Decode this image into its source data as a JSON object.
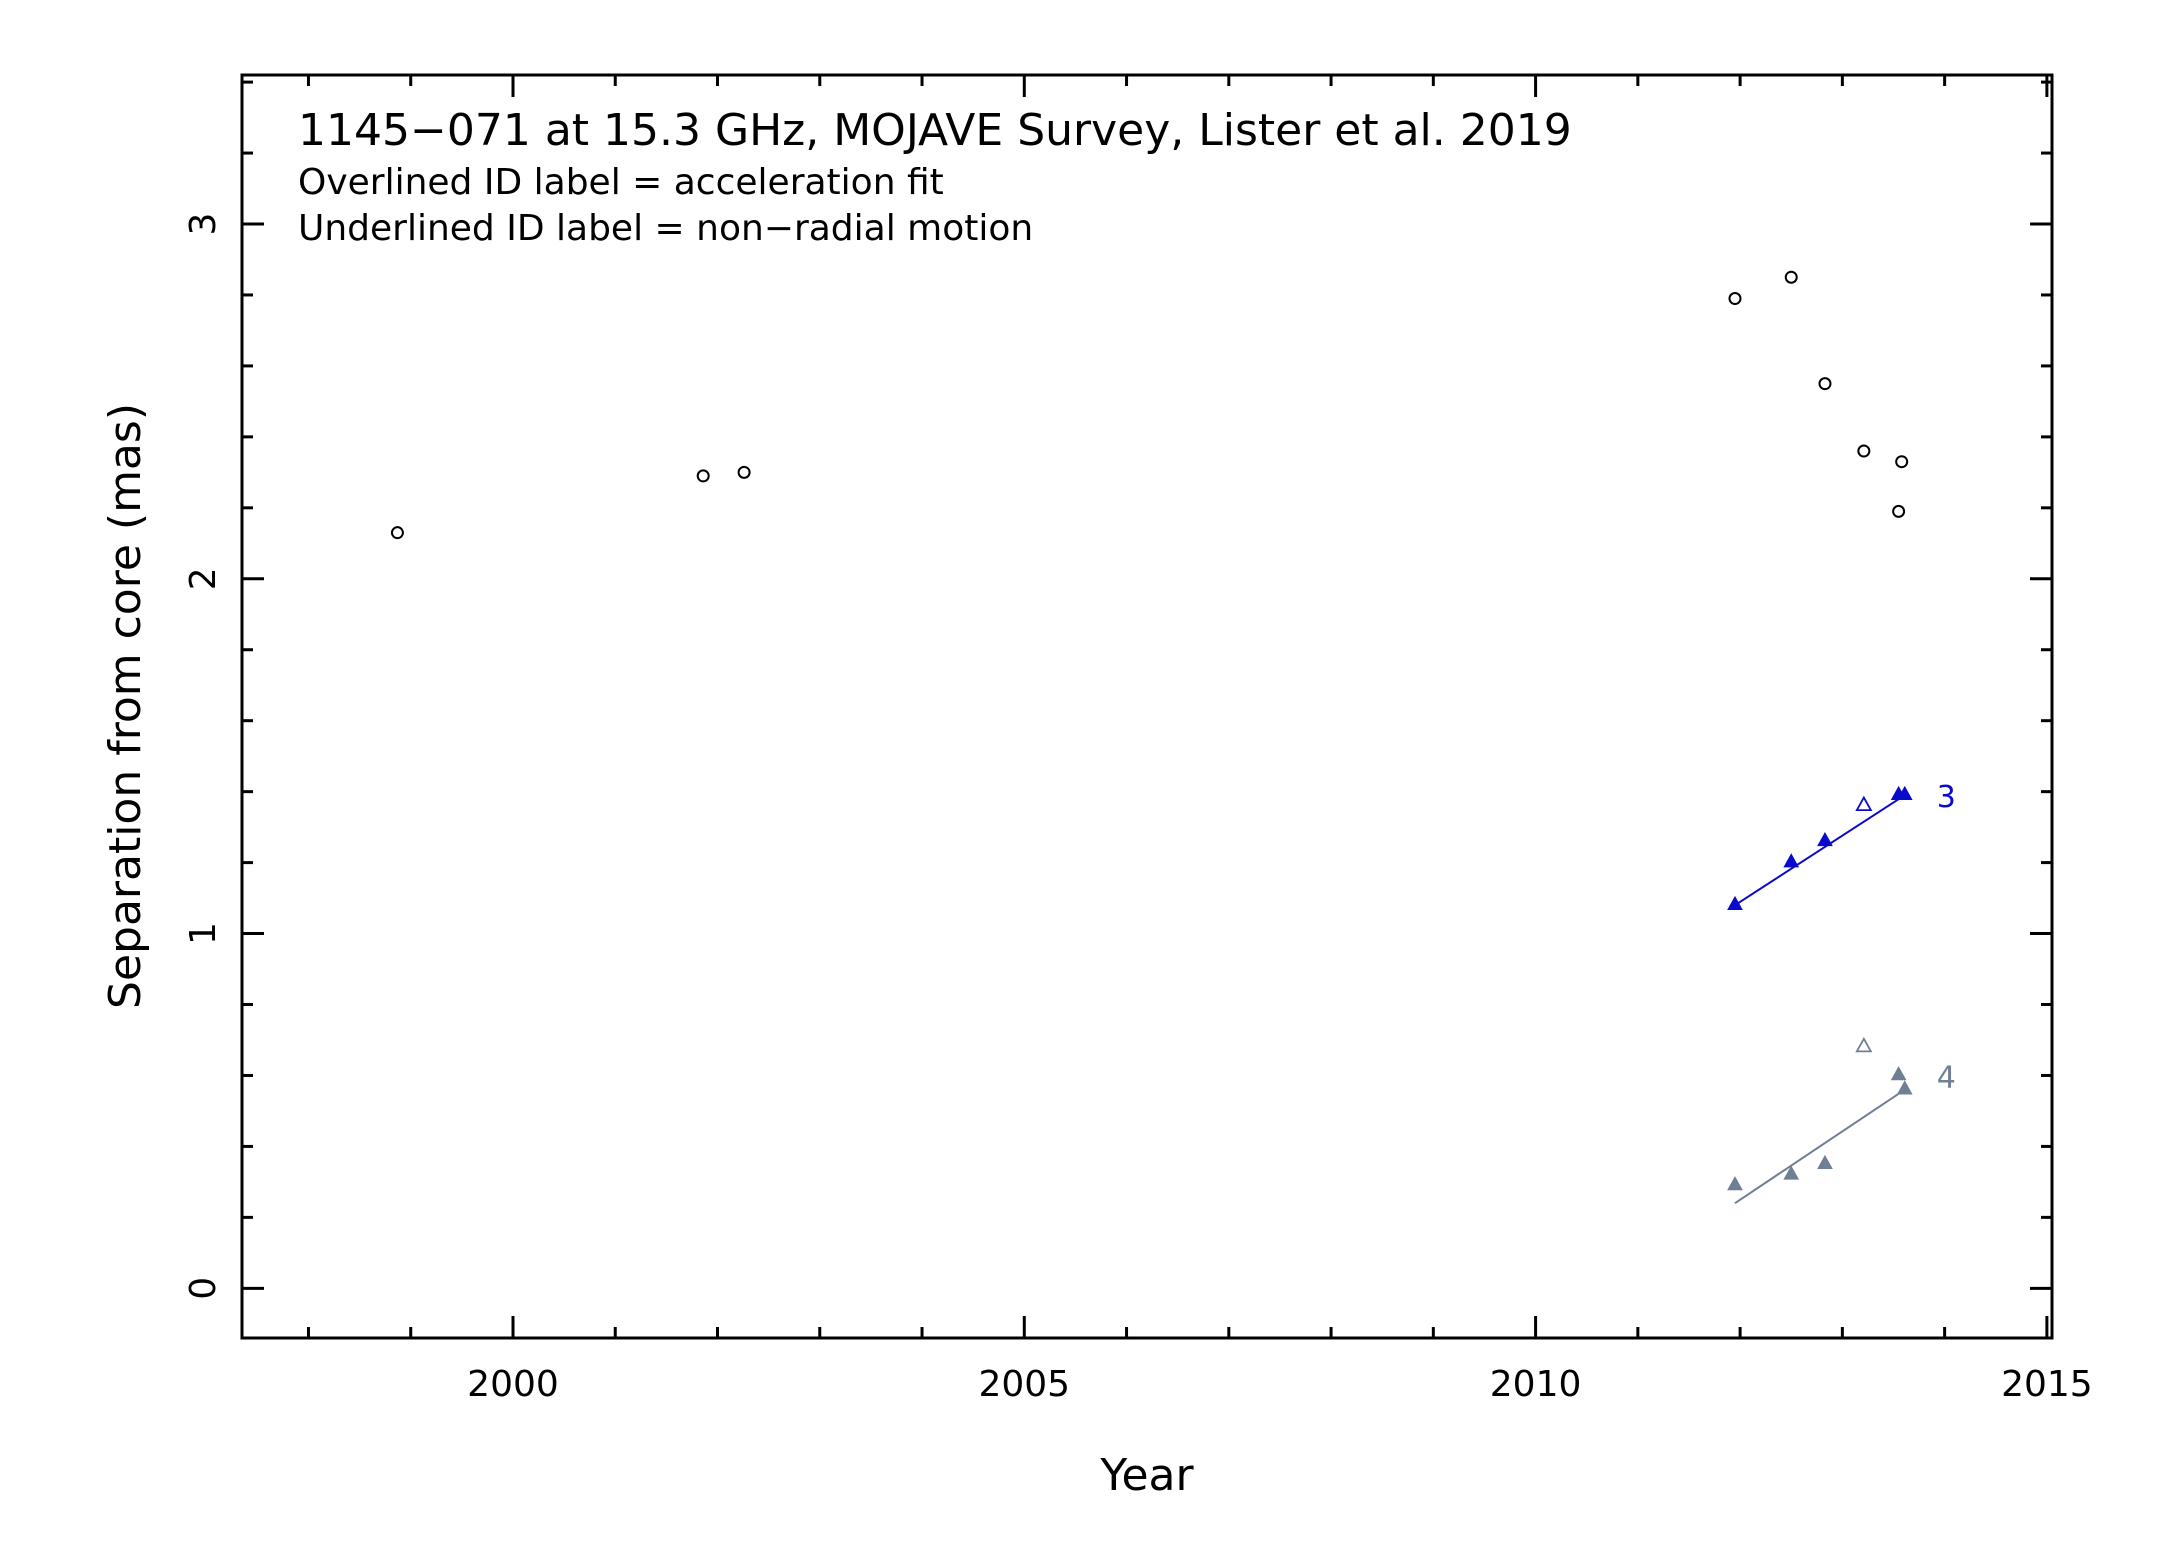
{
  "chart_data": {
    "type": "scatter",
    "title": "1145−071 at 15.3 GHz, MOJAVE Survey, Lister et al. 2019",
    "subtitle_lines": [
      "Overlined ID label = acceleration fit",
      "Underlined ID label = non−radial motion"
    ],
    "xlabel": "Year",
    "ylabel": "Separation from core (mas)",
    "xlim": [
      1997.35,
      2015.05
    ],
    "ylim": [
      -0.14,
      3.42
    ],
    "x_ticks": [
      2000,
      2005,
      2010,
      2015
    ],
    "y_ticks": [
      0,
      1,
      2,
      3
    ],
    "grid": false,
    "series": [
      {
        "name": "",
        "color": "#000000",
        "marker": "open-circle",
        "points": [
          {
            "x": 1998.87,
            "y": 2.13
          },
          {
            "x": 2001.86,
            "y": 2.29
          },
          {
            "x": 2002.26,
            "y": 2.3
          },
          {
            "x": 2011.95,
            "y": 2.79
          },
          {
            "x": 2012.5,
            "y": 2.85
          },
          {
            "x": 2012.83,
            "y": 2.55
          },
          {
            "x": 2013.21,
            "y": 2.36
          },
          {
            "x": 2013.55,
            "y": 2.19
          },
          {
            "x": 2013.58,
            "y": 2.33
          }
        ]
      },
      {
        "name": "3",
        "color": "#0a0acc",
        "marker": "filled-triangle",
        "points": [
          {
            "x": 2011.95,
            "y": 1.08
          },
          {
            "x": 2012.5,
            "y": 1.2
          },
          {
            "x": 2012.83,
            "y": 1.26
          },
          {
            "x": 2013.55,
            "y": 1.39
          },
          {
            "x": 2013.61,
            "y": 1.39
          }
        ],
        "excluded_points": [
          {
            "x": 2013.21,
            "y": 1.36
          }
        ],
        "fit": {
          "x": [
            2011.95,
            2013.61
          ],
          "y": [
            1.08,
            1.39
          ]
        }
      },
      {
        "name": "4",
        "color": "#6f7f94",
        "marker": "filled-triangle",
        "points": [
          {
            "x": 2011.95,
            "y": 0.29
          },
          {
            "x": 2012.5,
            "y": 0.32
          },
          {
            "x": 2012.83,
            "y": 0.35
          },
          {
            "x": 2013.55,
            "y": 0.6
          },
          {
            "x": 2013.61,
            "y": 0.56
          }
        ],
        "excluded_points": [
          {
            "x": 2013.21,
            "y": 0.68
          }
        ],
        "fit": {
          "x": [
            2011.95,
            2013.61
          ],
          "y": [
            0.24,
            0.56
          ]
        }
      }
    ]
  }
}
